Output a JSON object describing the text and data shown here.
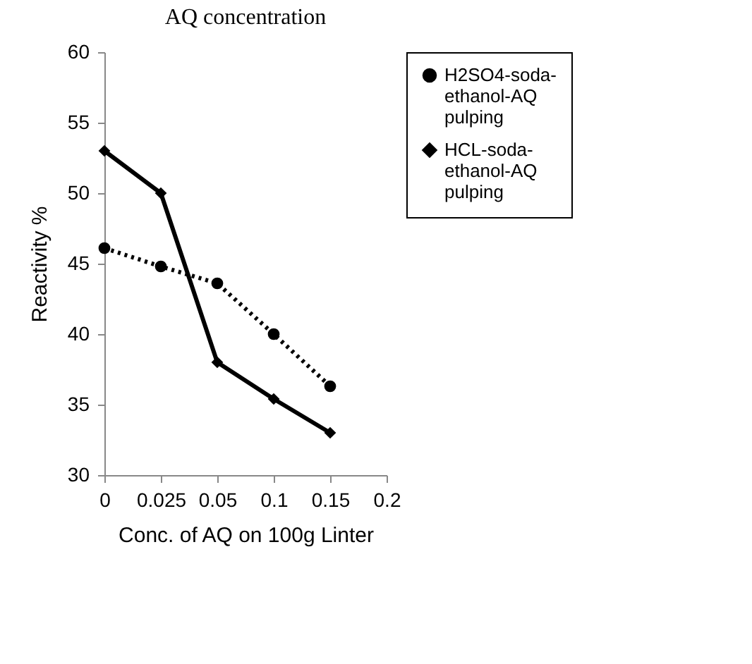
{
  "chart_data": {
    "type": "line",
    "title": "AQ concentration",
    "xlabel": "Conc. of AQ on 100g Linter",
    "ylabel": "Reactivity %",
    "categories": [
      "0",
      "0.025",
      "0.05",
      "0.1",
      "0.15",
      "0.2"
    ],
    "series": [
      {
        "name": "H2SO4-soda-ethanol-AQ pulping",
        "color": "#000000",
        "marker": "circle",
        "line_style": "dotted",
        "values": [
          46.1,
          44.8,
          43.6,
          40,
          36.3,
          null
        ]
      },
      {
        "name": "HCL-soda-ethanol-AQ pulping",
        "color": "#000000",
        "marker": "diamond",
        "line_style": "solid",
        "values": [
          53,
          50,
          38,
          35.4,
          33,
          null
        ]
      }
    ],
    "ylim": [
      30,
      60
    ],
    "yticks": [
      30,
      35,
      40,
      45,
      50,
      55,
      60
    ],
    "grid": false,
    "legend": "right"
  }
}
